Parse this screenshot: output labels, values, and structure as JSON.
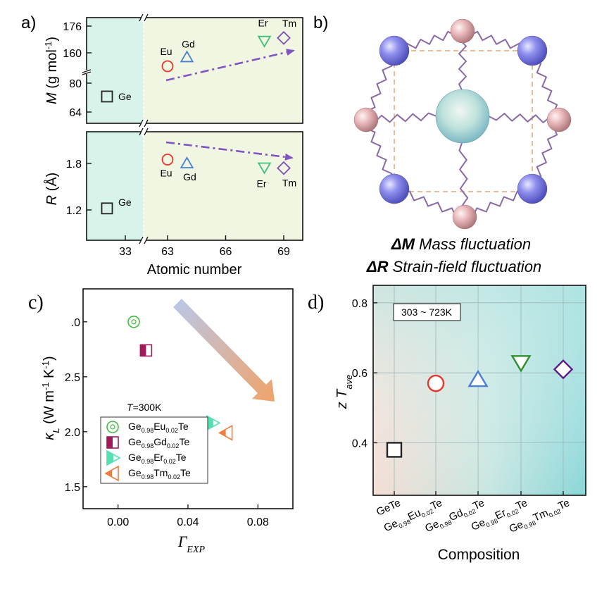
{
  "panel_labels": {
    "a": "a)",
    "b": "b)",
    "c": "c)",
    "d": "d)"
  },
  "colors": {
    "Ge": "#222222",
    "Eu": "#e8362a",
    "Gd": "#4a7fd4",
    "Er": "#3fbf7f",
    "Tm": "#7d4fb5",
    "arrow": "#8055c0",
    "panelA_bg": "#f1f6e3",
    "panelA_strip": "#d7f3ea"
  },
  "chart_data": [
    {
      "id": "a-top",
      "type": "scatter",
      "ylabel": "M (g mol-1)",
      "ylabel_parts": {
        "var": "M",
        "unit": " (g mol",
        "sup": "-1",
        "close": ")"
      },
      "yticks": [
        "64",
        "80",
        "160",
        "176"
      ],
      "broken_y": true,
      "points": [
        {
          "label": "Ge",
          "x": 32,
          "y": 72.6,
          "marker": "square"
        },
        {
          "label": "Eu",
          "x": 63,
          "y": 152.0,
          "marker": "circle"
        },
        {
          "label": "Gd",
          "x": 64,
          "y": 157.3,
          "marker": "triangle-up"
        },
        {
          "label": "Er",
          "x": 68,
          "y": 167.3,
          "marker": "triangle-down"
        },
        {
          "label": "Tm",
          "x": 69,
          "y": 168.9,
          "marker": "diamond"
        }
      ],
      "trend_arrow": "dash-dot, rising toward Tm"
    },
    {
      "id": "a-bottom",
      "type": "scatter",
      "xlabel": "Atomic number",
      "ylabel": "R (Å)",
      "ylabel_parts": {
        "var": "R",
        "unit": " (Å)"
      },
      "xticks": [
        "33",
        "63",
        "66",
        "69"
      ],
      "yticks": [
        "1.2",
        "1.8"
      ],
      "broken_x": true,
      "points": [
        {
          "label": "Ge",
          "x": 32,
          "y": 1.22,
          "marker": "square"
        },
        {
          "label": "Eu",
          "x": 63,
          "y": 1.85,
          "marker": "circle"
        },
        {
          "label": "Gd",
          "x": 64,
          "y": 1.8,
          "marker": "triangle-up"
        },
        {
          "label": "Er",
          "x": 68,
          "y": 1.75,
          "marker": "triangle-down"
        },
        {
          "label": "Tm",
          "x": 69,
          "y": 1.74,
          "marker": "diamond"
        }
      ],
      "trend_arrow": "dash-dot, falling toward Tm"
    },
    {
      "id": "c",
      "type": "scatter",
      "xlabel": "ΓEXP",
      "xlabel_parts": {
        "main": "Γ",
        "sub": "EXP"
      },
      "ylabel_parts": {
        "main": "κ",
        "sub": "L",
        "unit": " (W m",
        "sup1": "-1",
        "mid": " K",
        "sup2": "-1",
        "close": ")"
      },
      "xlim": [
        -0.02,
        0.1
      ],
      "ylim": [
        1.3,
        3.3
      ],
      "xticks": [
        "0.00",
        "0.04",
        "0.08"
      ],
      "yticks": [
        "1.5",
        "2.0",
        "2.5",
        ".0"
      ],
      "legend_title_parts": {
        "var": "T",
        "rest": "=300K"
      },
      "legend": [
        {
          "parts": [
            "Ge",
            "0.98",
            "Eu",
            "0.02",
            "Te"
          ],
          "color": "#3fbf3f",
          "marker": "circle-dot"
        },
        {
          "parts": [
            "Ge",
            "0.98",
            "Gd",
            "0.02",
            "Te"
          ],
          "color": "#a01a5a",
          "marker": "half-square"
        },
        {
          "parts": [
            "Ge",
            "0.98",
            "Er",
            "0.02",
            "Te"
          ],
          "color": "#55e0b0",
          "marker": "half-triangle-right"
        },
        {
          "parts": [
            "Ge",
            "0.98",
            "Tm",
            "0.02",
            "Te"
          ],
          "color": "#ef7d3d",
          "marker": "half-triangle-left"
        }
      ],
      "points": [
        {
          "x": 0.009,
          "y": 3.0
        },
        {
          "x": 0.016,
          "y": 2.74
        },
        {
          "x": 0.054,
          "y": 2.08
        },
        {
          "x": 0.062,
          "y": 1.99
        }
      ]
    },
    {
      "id": "d",
      "type": "scatter",
      "xlabel": "Composition",
      "ylabel_parts": {
        "z": "z",
        "T": "T",
        "sub": "ave"
      },
      "annotation": "303 ~ 723K",
      "ylim": [
        0.25,
        0.85
      ],
      "yticks": [
        "0.4",
        "0.6",
        "0.8"
      ],
      "categories": [
        {
          "parts": [
            "GeTe"
          ]
        },
        {
          "parts": [
            "Ge",
            "0.98",
            "Eu",
            "0.02",
            "Te"
          ]
        },
        {
          "parts": [
            "Ge",
            "0.98",
            "Gd",
            "0.02",
            "Te"
          ]
        },
        {
          "parts": [
            "Ge",
            "0.98",
            "Er",
            "0.02",
            "Te"
          ]
        },
        {
          "parts": [
            "Ge",
            "0.98",
            "Tm",
            "0.02",
            "Te"
          ]
        }
      ],
      "values": [
        0.38,
        0.57,
        0.58,
        0.63,
        0.61
      ],
      "markers": [
        "square",
        "circle",
        "triangle-up",
        "triangle-down",
        "diamond"
      ]
    }
  ],
  "panel_b": {
    "caption1_bold": "ΔM",
    "caption1_rest": " Mass fluctuation",
    "caption2_bold": "ΔR",
    "caption2_rest": " Strain-field fluctuation"
  }
}
